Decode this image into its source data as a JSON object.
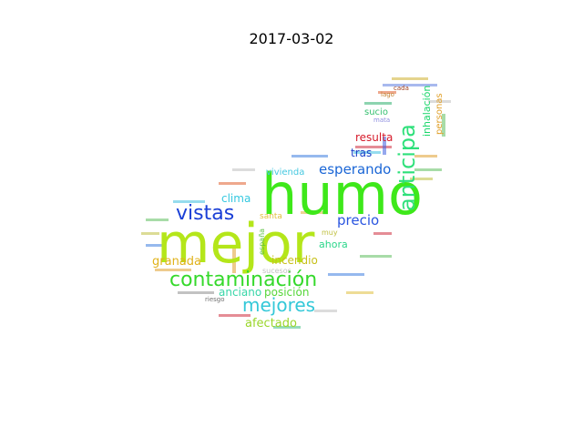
{
  "title": "2017-03-02",
  "words": [
    {
      "text": "humo",
      "color": "#3ee81a"
    },
    {
      "text": "mejor",
      "color": "#b4e61a"
    },
    {
      "text": "contaminación",
      "color": "#35d92b"
    },
    {
      "text": "vistas",
      "color": "#1a3fd6"
    },
    {
      "text": "anticipa",
      "color": "#2ee07a"
    },
    {
      "text": "mejores",
      "color": "#33c8d8"
    },
    {
      "text": "esperando",
      "color": "#1a66d6"
    },
    {
      "text": "precio",
      "color": "#2a55e0"
    },
    {
      "text": "granada",
      "color": "#e0b21a"
    },
    {
      "text": "incendio",
      "color": "#c7c01a"
    },
    {
      "text": "anciano",
      "color": "#38d6a8"
    },
    {
      "text": "posición",
      "color": "#57d63a"
    },
    {
      "text": "afectado",
      "color": "#9ad62a"
    },
    {
      "text": "clima",
      "color": "#35c8e0"
    },
    {
      "text": "vivienda",
      "color": "#45c8e0"
    },
    {
      "text": "resulta",
      "color": "#d61a2a"
    },
    {
      "text": "tras",
      "color": "#1a40c8"
    },
    {
      "text": "ahora",
      "color": "#2ad68a"
    },
    {
      "text": "sucio",
      "color": "#35c070"
    },
    {
      "text": "inhalación",
      "color": "#1ad66a"
    },
    {
      "text": "personas",
      "color": "#e0a02a"
    },
    {
      "text": "santa",
      "color": "#e0c040"
    },
    {
      "text": "sucesos",
      "color": "#c0c0c0"
    },
    {
      "text": "muy",
      "color": "#c0c040"
    },
    {
      "text": "españa",
      "color": "#5ac040"
    },
    {
      "text": "lago",
      "color": "#c08030"
    },
    {
      "text": "mata",
      "color": "#9090e0"
    },
    {
      "text": "riesgo",
      "color": "#707070"
    },
    {
      "text": "cada",
      "color": "#a04020"
    }
  ],
  "colors": {
    "background": "#ffffff",
    "title": "#000000"
  }
}
